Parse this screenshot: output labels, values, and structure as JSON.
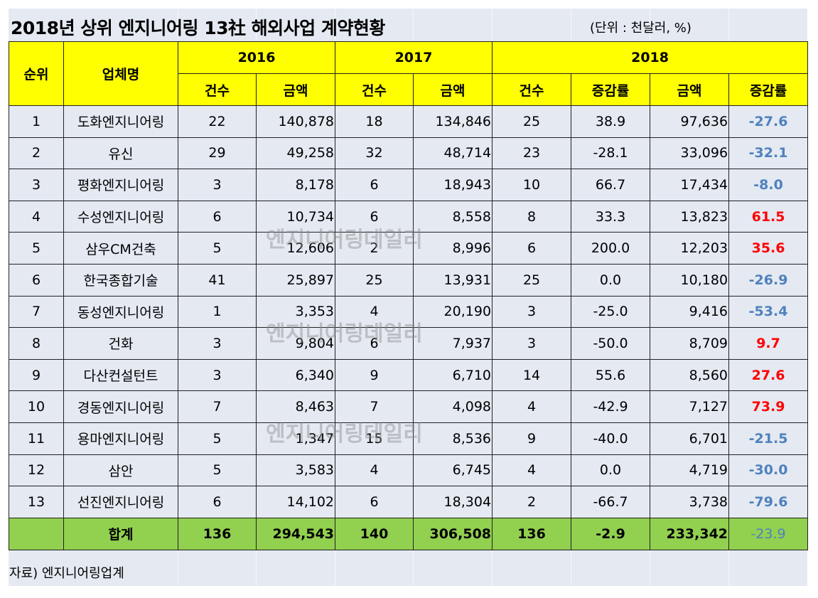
{
  "title": "2018년 상위 엔지니어링 13社 해외사업 계약현황",
  "unit": "(단위 : 천달러, %)",
  "headers": {
    "rank": "순위",
    "company": "업체명",
    "y2016": "2016",
    "y2017": "2017",
    "y2018": "2018",
    "count": "건수",
    "amount": "금액",
    "change": "증감률"
  },
  "rows": [
    {
      "rank": "1",
      "company": "도화엔지니어링",
      "c16": "22",
      "a16": "140,878",
      "c17": "18",
      "a17": "134,846",
      "c18": "25",
      "cc18": "38.9",
      "a18": "97,636",
      "ac18": "-27.6"
    },
    {
      "rank": "2",
      "company": "유신",
      "c16": "29",
      "a16": "49,258",
      "c17": "32",
      "a17": "48,714",
      "c18": "23",
      "cc18": "-28.1",
      "a18": "33,096",
      "ac18": "-32.1"
    },
    {
      "rank": "3",
      "company": "평화엔지니어링",
      "c16": "3",
      "a16": "8,178",
      "c17": "6",
      "a17": "18,943",
      "c18": "10",
      "cc18": "66.7",
      "a18": "17,434",
      "ac18": "-8.0"
    },
    {
      "rank": "4",
      "company": "수성엔지니어링",
      "c16": "6",
      "a16": "10,734",
      "c17": "6",
      "a17": "8,558",
      "c18": "8",
      "cc18": "33.3",
      "a18": "13,823",
      "ac18": "61.5"
    },
    {
      "rank": "5",
      "company": "삼우CM건축",
      "c16": "5",
      "a16": "12,606",
      "c17": "2",
      "a17": "8,996",
      "c18": "6",
      "cc18": "200.0",
      "a18": "12,203",
      "ac18": "35.6"
    },
    {
      "rank": "6",
      "company": "한국종합기술",
      "c16": "41",
      "a16": "25,897",
      "c17": "25",
      "a17": "13,931",
      "c18": "25",
      "cc18": "0.0",
      "a18": "10,180",
      "ac18": "-26.9"
    },
    {
      "rank": "7",
      "company": "동성엔지니어링",
      "c16": "1",
      "a16": "3,353",
      "c17": "4",
      "a17": "20,190",
      "c18": "3",
      "cc18": "-25.0",
      "a18": "9,416",
      "ac18": "-53.4"
    },
    {
      "rank": "8",
      "company": "건화",
      "c16": "3",
      "a16": "9,804",
      "c17": "6",
      "a17": "7,937",
      "c18": "3",
      "cc18": "-50.0",
      "a18": "8,709",
      "ac18": "9.7"
    },
    {
      "rank": "9",
      "company": "다산컨설턴트",
      "c16": "3",
      "a16": "6,340",
      "c17": "9",
      "a17": "6,710",
      "c18": "14",
      "cc18": "55.6",
      "a18": "8,560",
      "ac18": "27.6"
    },
    {
      "rank": "10",
      "company": "경동엔지니어링",
      "c16": "7",
      "a16": "8,463",
      "c17": "7",
      "a17": "4,098",
      "c18": "4",
      "cc18": "-42.9",
      "a18": "7,127",
      "ac18": "73.9"
    },
    {
      "rank": "11",
      "company": "용마엔지니어링",
      "c16": "5",
      "a16": "1,347",
      "c17": "15",
      "a17": "8,536",
      "c18": "9",
      "cc18": "-40.0",
      "a18": "6,701",
      "ac18": "-21.5"
    },
    {
      "rank": "12",
      "company": "삼안",
      "c16": "5",
      "a16": "3,583",
      "c17": "4",
      "a17": "6,745",
      "c18": "4",
      "cc18": "0.0",
      "a18": "4,719",
      "ac18": "-30.0"
    },
    {
      "rank": "13",
      "company": "선진엔지니어링",
      "c16": "6",
      "a16": "14,102",
      "c17": "6",
      "a17": "18,304",
      "c18": "2",
      "cc18": "-66.7",
      "a18": "3,738",
      "ac18": "-79.6"
    }
  ],
  "total": {
    "label": "합계",
    "c16": "136",
    "a16": "294,543",
    "c17": "140",
    "a17": "306,508",
    "c18": "136",
    "cc18": "-2.9",
    "a18": "233,342",
    "ac18": "-23.9"
  },
  "source": "자료) 엔지니어링업계",
  "watermark": "엔지니어링데일리",
  "colors": {
    "header": "#ffff00",
    "total": "#92d050",
    "increase": "#ff0000",
    "decrease": "#4f81bd",
    "background": "#e4e9f2"
  }
}
